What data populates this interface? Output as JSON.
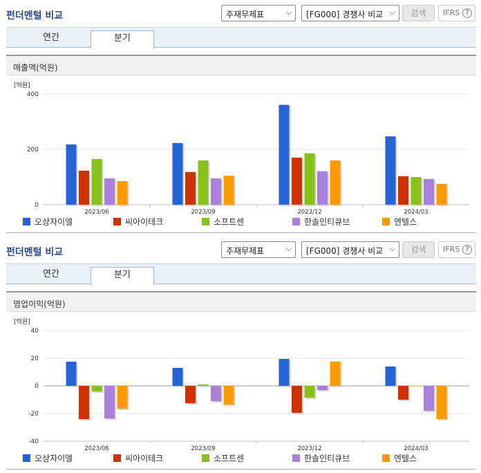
{
  "panels": [
    {
      "title": "펀더멘털 비교",
      "select1": "주재무제표",
      "select2": "[FG000] 경쟁사 비교",
      "search_label": "검색",
      "ifrs_label": "IFRS",
      "ifrs_help": "?",
      "tabs": [
        "연간",
        "분기"
      ],
      "active_tab": "분기",
      "subhead": "매출액(억원)"
    },
    {
      "title": "펀더멘털 비교",
      "select1": "주재무제표",
      "select2": "[FG000] 경쟁사 비교",
      "search_label": "검색",
      "ifrs_label": "IFRS",
      "ifrs_help": "?",
      "tabs": [
        "연간",
        "분기"
      ],
      "active_tab": "분기",
      "subhead": "영업이익(억원)"
    }
  ],
  "chart_data": [
    {
      "type": "bar",
      "unit_label": "[억원]",
      "categories": [
        "2023/06",
        "2023/09",
        "2023/12",
        "2024/03"
      ],
      "ylim": [
        0,
        400
      ],
      "yticks": [
        0,
        200,
        400
      ],
      "series": [
        {
          "name": "오상자이엘",
          "color": "#2563d6",
          "values": [
            218,
            223,
            361,
            247
          ]
        },
        {
          "name": "씨아이테크",
          "color": "#cc3300",
          "values": [
            123,
            118,
            170,
            103
          ]
        },
        {
          "name": "소프트센",
          "color": "#86c21a",
          "values": [
            165,
            160,
            186,
            100
          ]
        },
        {
          "name": "한솔인티큐브",
          "color": "#a97fdb",
          "values": [
            95,
            95,
            121,
            93
          ]
        },
        {
          "name": "엔텔스",
          "color": "#ff9900",
          "values": [
            85,
            105,
            160,
            75
          ]
        }
      ],
      "legend_position": "bottom",
      "grid": true
    },
    {
      "type": "bar",
      "unit_label": "[억원]",
      "categories": [
        "2023/06",
        "2023/09",
        "2023/12",
        "2024/03"
      ],
      "ylim": [
        -40,
        40
      ],
      "yticks": [
        -40,
        -20,
        0,
        20,
        40
      ],
      "series": [
        {
          "name": "오상자이엘",
          "color": "#2563d6",
          "values": [
            17.5,
            13,
            19.5,
            14
          ]
        },
        {
          "name": "씨아이테크",
          "color": "#cc3300",
          "values": [
            -24,
            -12.5,
            -19.5,
            -10
          ]
        },
        {
          "name": "소프트센",
          "color": "#86c21a",
          "values": [
            -4,
            1,
            -8.5,
            0
          ]
        },
        {
          "name": "한솔인티큐브",
          "color": "#a97fdb",
          "values": [
            -23.5,
            -11,
            -3,
            -18
          ]
        },
        {
          "name": "엔텔스",
          "color": "#ff9900",
          "values": [
            -16.5,
            -13.5,
            17.5,
            -24
          ]
        }
      ],
      "legend_position": "bottom",
      "grid": true
    }
  ]
}
